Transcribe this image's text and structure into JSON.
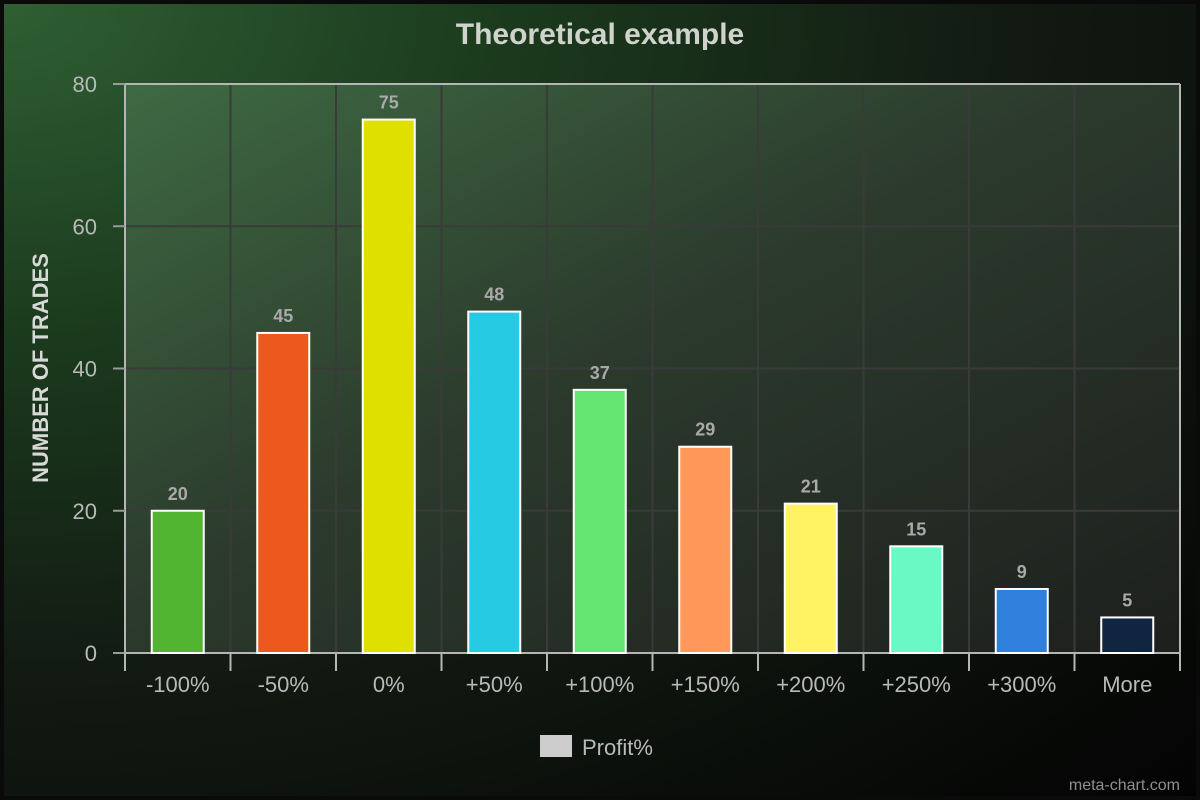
{
  "chart_data": {
    "type": "bar",
    "title": "Theoretical example",
    "xlabel": "",
    "ylabel": "NUMBER OF TRADES",
    "ylim": [
      0,
      80
    ],
    "yticks": [
      "0",
      "20",
      "40",
      "60",
      "80"
    ],
    "grid": true,
    "categories": [
      "-100%",
      "-50%",
      "0%",
      "+50%",
      "+100%",
      "+150%",
      "+200%",
      "+250%",
      "+300%",
      "More"
    ],
    "series": [
      {
        "name": "Profit%",
        "values": [
          20,
          45,
          75,
          48,
          37,
          29,
          21,
          15,
          9,
          5
        ]
      }
    ],
    "bar_colors": [
      "#52b531",
      "#ec581e",
      "#e0e000",
      "#26cbe3",
      "#64e571",
      "#ff9858",
      "#fff263",
      "#6af9c5",
      "#2f7fdc",
      "#0f2540"
    ],
    "legend": {
      "position": "bottom",
      "label": "Profit%",
      "swatch_color": "#cccccc"
    }
  },
  "credit": "meta-chart.com"
}
